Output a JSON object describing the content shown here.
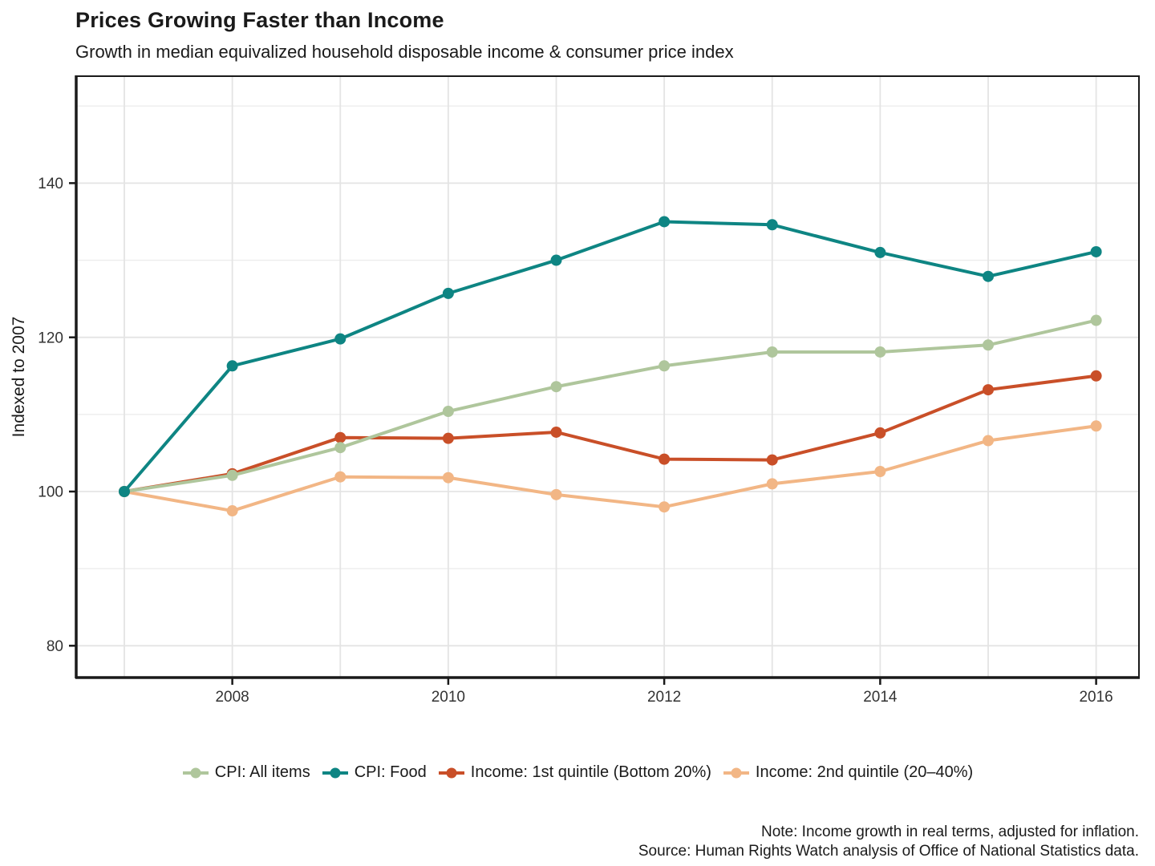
{
  "header": {
    "title": "Prices Growing Faster than Income",
    "subtitle": "Growth in median equivalized household disposable income & consumer price index"
  },
  "chart_data": {
    "type": "line",
    "x": [
      2007,
      2008,
      2009,
      2010,
      2011,
      2012,
      2013,
      2014,
      2015,
      2016
    ],
    "series": [
      {
        "name": "CPI: All items",
        "color": "#afc69c",
        "values": [
          100,
          102.1,
          105.7,
          110.4,
          113.6,
          116.3,
          118.1,
          118.1,
          119.0,
          122.2
        ]
      },
      {
        "name": "CPI: Food",
        "color": "#0e8583",
        "values": [
          100,
          116.3,
          119.8,
          125.7,
          130.0,
          135.0,
          134.6,
          131.0,
          127.9,
          131.1
        ]
      },
      {
        "name": "Income: 1st quintile (Bottom 20%)",
        "color": "#c94f28",
        "values": [
          100,
          102.3,
          107.0,
          106.9,
          107.7,
          104.2,
          104.1,
          107.6,
          113.2,
          115.0
        ]
      },
      {
        "name": "Income: 2nd quintile (20–40%)",
        "color": "#f2b685",
        "values": [
          100,
          97.5,
          101.9,
          101.8,
          99.6,
          98.0,
          101.0,
          102.6,
          106.6,
          108.5
        ]
      }
    ],
    "title": "Prices Growing Faster than Income",
    "xlabel": "",
    "ylabel": "Indexed to 2007",
    "ylim": [
      75.9,
      153.9
    ],
    "yticks": [
      80,
      100,
      120,
      140
    ],
    "yticks_minor": [
      90,
      110,
      130,
      150
    ],
    "xticks": [
      2008,
      2010,
      2012,
      2014,
      2016
    ],
    "grid": true,
    "legend_position": "bottom"
  },
  "footer": {
    "note": "Note: Income growth in real terms, adjusted for inflation.",
    "source": "Source: Human Rights Watch analysis of Office of National Statistics data."
  }
}
